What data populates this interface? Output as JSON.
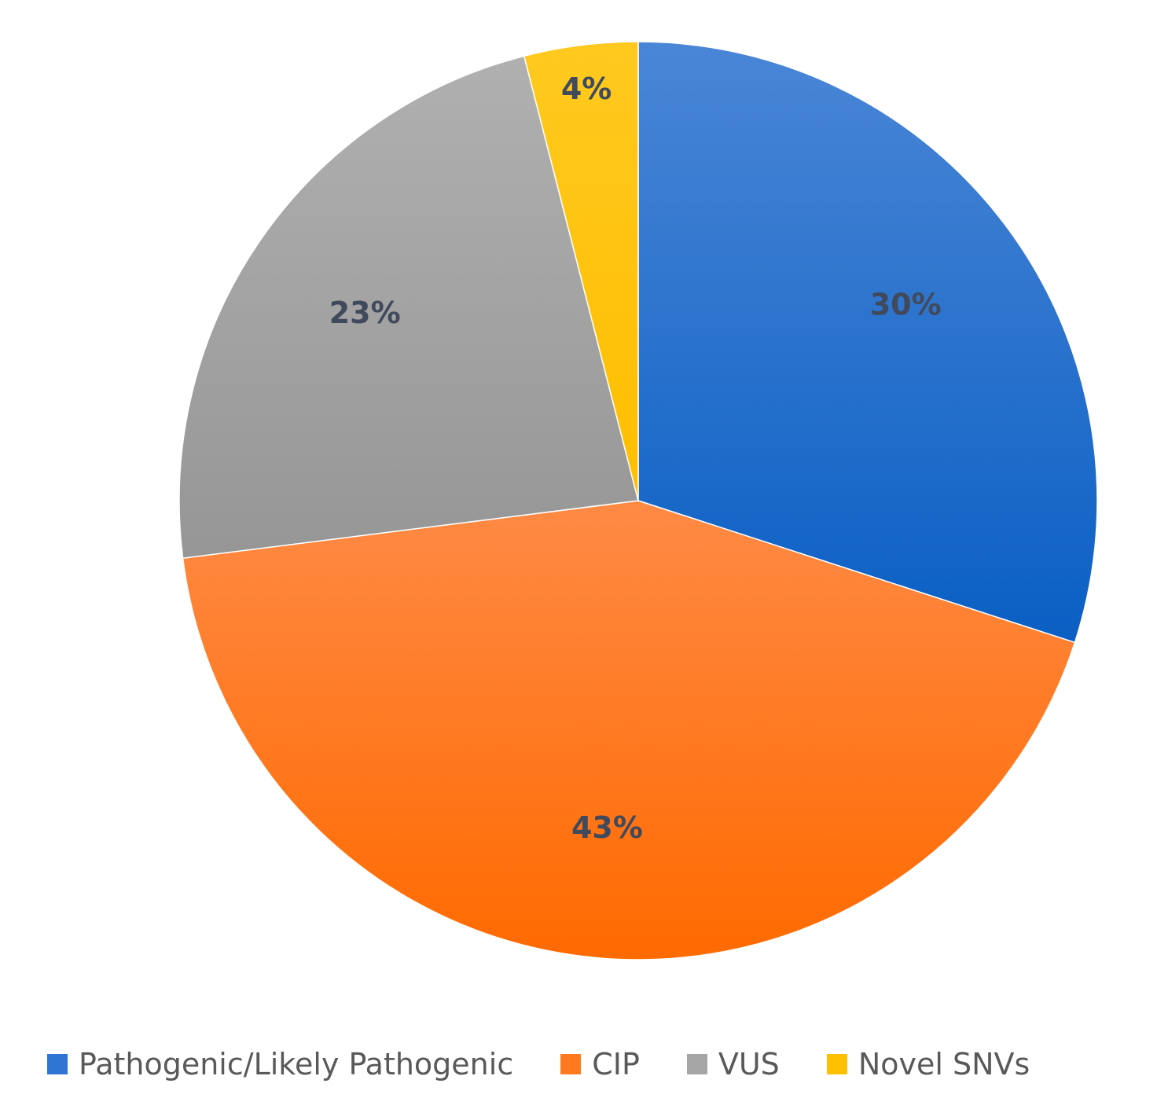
{
  "chart_data": {
    "type": "pie",
    "title": "",
    "slices": [
      {
        "label": "Pathogenic/Likely Pathogenic",
        "value": 30,
        "display": "30%",
        "color": "#2E75D4"
      },
      {
        "label": "CIP",
        "value": 43,
        "display": "43%",
        "color": "#FF7A1E"
      },
      {
        "label": "VUS",
        "value": 23,
        "display": "23%",
        "color": "#A6A6A6"
      },
      {
        "label": "Novel SNVs",
        "value": 4,
        "display": "4%",
        "color": "#FFC000"
      }
    ],
    "start_angle_deg": 0,
    "direction": "clockwise",
    "legend_position": "bottom"
  }
}
